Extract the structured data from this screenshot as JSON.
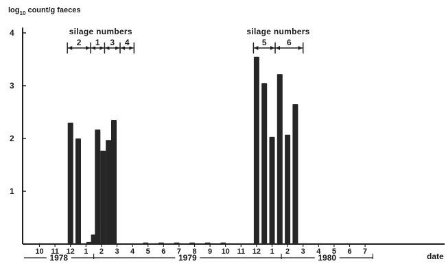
{
  "chart_data": {
    "type": "bar",
    "ylabel_main": "log",
    "ylabel_sub": "10",
    "ylabel_rest": " count/g faeces",
    "xlabel": "date",
    "ylim": [
      0,
      4
    ],
    "yticks": [
      "1",
      "2",
      "3",
      "4"
    ],
    "month_ticks": [
      "10",
      "11",
      "12",
      "1",
      "2",
      "3",
      "4",
      "5",
      "6",
      "7",
      "8",
      "9",
      "10",
      "11",
      "12",
      "1",
      "2",
      "3",
      "4",
      "5",
      "6",
      "7"
    ],
    "years": [
      "1978",
      "1979",
      "1980"
    ],
    "bars": [
      {
        "x": 2.0,
        "y": 2.3
      },
      {
        "x": 2.5,
        "y": 2.0
      },
      {
        "x": 3.2,
        "y": 0.04
      },
      {
        "x": 3.5,
        "y": 0.18
      },
      {
        "x": 3.75,
        "y": 2.17
      },
      {
        "x": 4.1,
        "y": 1.77
      },
      {
        "x": 4.45,
        "y": 1.97
      },
      {
        "x": 4.8,
        "y": 2.35
      },
      {
        "x": 6.85,
        "y": 0.03
      },
      {
        "x": 7.85,
        "y": 0.03
      },
      {
        "x": 8.85,
        "y": 0.03
      },
      {
        "x": 9.85,
        "y": 0.03
      },
      {
        "x": 10.85,
        "y": 0.03
      },
      {
        "x": 11.85,
        "y": 0.03
      },
      {
        "x": 14.0,
        "y": 3.55
      },
      {
        "x": 14.5,
        "y": 3.05
      },
      {
        "x": 15.0,
        "y": 2.03
      },
      {
        "x": 15.5,
        "y": 3.22
      },
      {
        "x": 16.0,
        "y": 2.07
      },
      {
        "x": 16.5,
        "y": 2.65
      }
    ],
    "silage_groups": [
      {
        "title": "silage numbers",
        "boundaries": [
          1.8,
          3.3,
          4.2,
          5.2,
          6.1
        ],
        "labels": [
          "2",
          "1",
          "3",
          "4"
        ]
      },
      {
        "title": "silage numbers",
        "boundaries": [
          13.8,
          15.2,
          17.0
        ],
        "labels": [
          "5",
          "6"
        ]
      }
    ]
  }
}
